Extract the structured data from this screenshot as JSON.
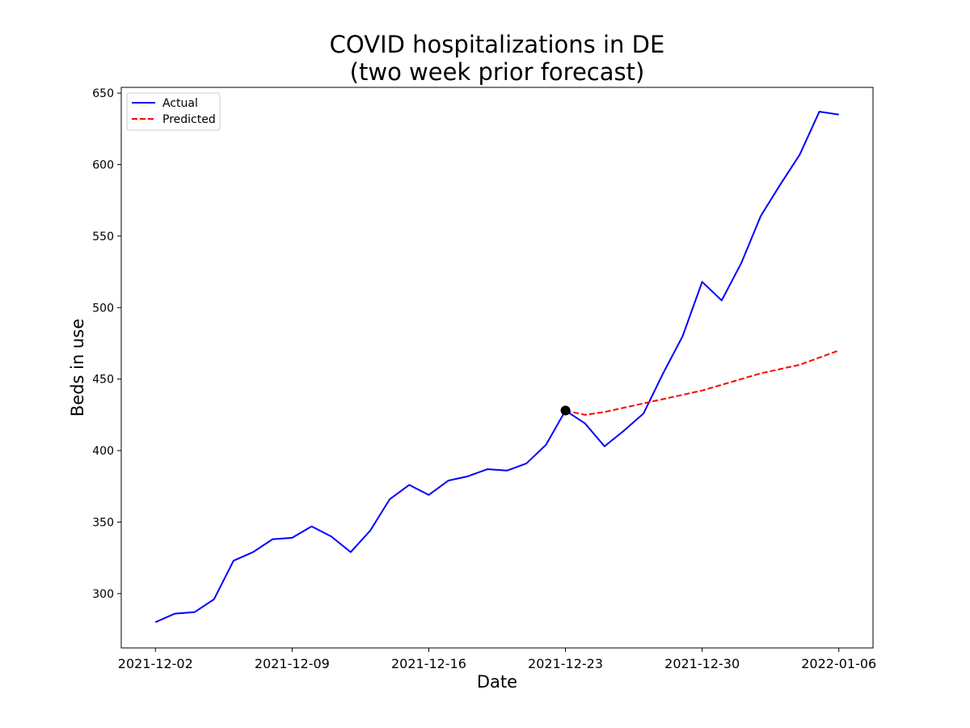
{
  "chart_data": {
    "type": "line",
    "title_line1": "COVID hospitalizations in DE",
    "title_line2": "(two week prior forecast)",
    "xlabel": "Date",
    "ylabel": "Beds in use",
    "ylim": [
      262,
      654
    ],
    "xlim": [
      -1.75,
      36.75
    ],
    "yticks": [
      300,
      350,
      400,
      450,
      500,
      550,
      600,
      650
    ],
    "xticks": [
      {
        "index": 0,
        "label": "2021-12-02"
      },
      {
        "index": 7,
        "label": "2021-12-09"
      },
      {
        "index": 14,
        "label": "2021-12-16"
      },
      {
        "index": 21,
        "label": "2021-12-23"
      },
      {
        "index": 28,
        "label": "2021-12-30"
      },
      {
        "index": 35,
        "label": "2022-01-06"
      }
    ],
    "legend": {
      "position": "top-left",
      "entries": [
        "Actual",
        "Predicted"
      ]
    },
    "series": [
      {
        "name": "Actual",
        "color": "#0000ff",
        "style": "solid",
        "start_index": 0,
        "values": [
          280,
          286,
          287,
          296,
          323,
          329,
          338,
          339,
          347,
          340,
          329,
          344,
          366,
          376,
          369,
          379,
          382,
          387,
          386,
          391,
          404,
          428,
          419,
          403,
          414,
          426,
          454,
          480,
          518,
          505,
          531,
          564,
          586,
          607,
          637,
          635
        ]
      },
      {
        "name": "Predicted",
        "color": "#ff0000",
        "style": "dashed",
        "start_index": 21,
        "values": [
          428,
          425,
          427,
          430,
          433,
          436,
          439,
          442,
          446,
          450,
          454,
          457,
          460,
          465,
          470
        ]
      }
    ],
    "marker": {
      "index": 21,
      "value": 428,
      "color": "#000000"
    }
  }
}
